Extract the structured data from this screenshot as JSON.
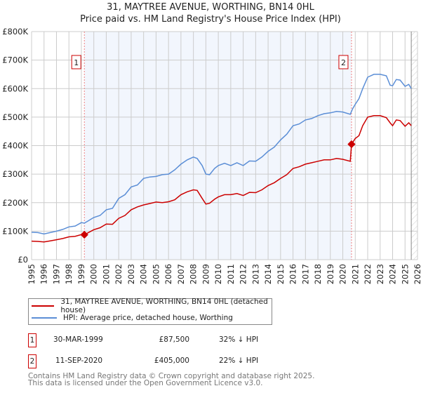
{
  "title_line1": "31, MAYTREE AVENUE, WORTHING, BN14 0HL",
  "title_line2": "Price paid vs. HM Land Registry's House Price Index (HPI)",
  "chart_data": {
    "type": "line",
    "title": "31, MAYTREE AVENUE, WORTHING, BN14 0HL — Price paid vs. HM Land Registry's House Price Index (HPI)",
    "xlim": [
      1995,
      2026
    ],
    "ylim": [
      0,
      800000
    ],
    "x_ticks": [
      "1995",
      "1996",
      "1997",
      "1998",
      "1999",
      "2000",
      "2001",
      "2002",
      "2003",
      "2004",
      "2005",
      "2006",
      "2007",
      "2008",
      "2009",
      "2010",
      "2011",
      "2012",
      "2013",
      "2014",
      "2015",
      "2016",
      "2017",
      "2018",
      "2019",
      "2020",
      "2021",
      "2022",
      "2023",
      "2024",
      "2025",
      "2026"
    ],
    "y_ticks": [
      {
        "v": 0,
        "label": "£0"
      },
      {
        "v": 100000,
        "label": "£100K"
      },
      {
        "v": 200000,
        "label": "£200K"
      },
      {
        "v": 300000,
        "label": "£300K"
      },
      {
        "v": 400000,
        "label": "£400K"
      },
      {
        "v": 500000,
        "label": "£500K"
      },
      {
        "v": 600000,
        "label": "£600K"
      },
      {
        "v": 700000,
        "label": "£700K"
      },
      {
        "v": 800000,
        "label": "£800K"
      }
    ],
    "grid": true,
    "shaded_range": [
      1999.24,
      2020.7
    ],
    "series": [
      {
        "name": "31, MAYTREE AVENUE, WORTHING, BN14 0HL (detached house)",
        "color": "#cc0000",
        "x": [
          1995,
          1995.5,
          1996,
          1996.5,
          1997,
          1997.5,
          1998,
          1998.5,
          1999,
          1999.24,
          2000,
          2000.5,
          2001,
          2001.5,
          2002,
          2002.5,
          2003,
          2003.5,
          2004,
          2004.5,
          2005,
          2005.5,
          2006,
          2006.5,
          2007,
          2007.5,
          2008,
          2008.3,
          2008.7,
          2009,
          2009.3,
          2009.7,
          2010,
          2010.5,
          2011,
          2011.5,
          2012,
          2012.5,
          2013,
          2013.5,
          2014,
          2014.5,
          2015,
          2015.5,
          2016,
          2016.5,
          2017,
          2017.5,
          2018,
          2018.5,
          2019,
          2019.5,
          2020,
          2020.6,
          2020.7,
          2021,
          2021.3,
          2021.6,
          2022,
          2022.5,
          2023,
          2023.5,
          2023.8,
          2024,
          2024.3,
          2024.6,
          2025,
          2025.3,
          2025.5
        ],
        "y": [
          65000,
          64000,
          62000,
          66000,
          70000,
          74000,
          80000,
          82000,
          88000,
          87500,
          105000,
          112000,
          125000,
          124000,
          145000,
          155000,
          175000,
          185000,
          192000,
          197000,
          202000,
          200000,
          203000,
          210000,
          228000,
          238000,
          245000,
          243000,
          215000,
          195000,
          198000,
          212000,
          220000,
          228000,
          228000,
          232000,
          225000,
          236000,
          235000,
          245000,
          260000,
          270000,
          285000,
          298000,
          320000,
          326000,
          335000,
          340000,
          345000,
          350000,
          350000,
          355000,
          352000,
          345000,
          405000,
          425000,
          435000,
          470000,
          500000,
          505000,
          505000,
          498000,
          480000,
          470000,
          490000,
          488000,
          468000,
          480000,
          470000
        ]
      },
      {
        "name": "HPI: Average price, detached house, Worthing",
        "color": "#5b8ed6",
        "x": [
          1995,
          1995.5,
          1996,
          1996.5,
          1997,
          1997.5,
          1998,
          1998.5,
          1999,
          1999.24,
          2000,
          2000.5,
          2001,
          2001.5,
          2002,
          2002.5,
          2003,
          2003.5,
          2004,
          2004.5,
          2005,
          2005.5,
          2006,
          2006.5,
          2007,
          2007.5,
          2008,
          2008.3,
          2008.7,
          2009,
          2009.3,
          2009.7,
          2010,
          2010.5,
          2011,
          2011.5,
          2012,
          2012.5,
          2013,
          2013.5,
          2014,
          2014.5,
          2015,
          2015.5,
          2016,
          2016.5,
          2017,
          2017.5,
          2018,
          2018.5,
          2019,
          2019.5,
          2020,
          2020.6,
          2020.8,
          2021,
          2021.3,
          2021.6,
          2022,
          2022.5,
          2023,
          2023.5,
          2023.8,
          2024,
          2024.3,
          2024.6,
          2025,
          2025.3,
          2025.5
        ],
        "y": [
          96000,
          95000,
          90000,
          95000,
          100000,
          106000,
          115000,
          118000,
          130000,
          128000,
          148000,
          155000,
          175000,
          180000,
          215000,
          228000,
          255000,
          262000,
          285000,
          290000,
          292000,
          298000,
          300000,
          315000,
          335000,
          350000,
          360000,
          355000,
          330000,
          300000,
          298000,
          320000,
          330000,
          338000,
          330000,
          340000,
          330000,
          346000,
          345000,
          360000,
          380000,
          395000,
          420000,
          440000,
          470000,
          476000,
          490000,
          495000,
          505000,
          512000,
          515000,
          520000,
          518000,
          510000,
          530000,
          545000,
          565000,
          600000,
          640000,
          650000,
          650000,
          645000,
          612000,
          610000,
          632000,
          630000,
          608000,
          615000,
          600000
        ]
      }
    ],
    "annotations": [
      {
        "label": "1",
        "x": 1999.24,
        "y": 87500
      },
      {
        "label": "2",
        "x": 2020.7,
        "y": 405000
      }
    ]
  },
  "legend": [
    {
      "label": "31, MAYTREE AVENUE, WORTHING, BN14 0HL (detached house)",
      "color": "#cc0000"
    },
    {
      "label": "HPI: Average price, detached house, Worthing",
      "color": "#5b8ed6"
    }
  ],
  "transactions": [
    {
      "num": "1",
      "date": "30-MAR-1999",
      "price": "£87,500",
      "hpi": "32% ↓ HPI"
    },
    {
      "num": "2",
      "date": "11-SEP-2020",
      "price": "£405,000",
      "hpi": "22% ↓ HPI"
    }
  ],
  "footer_line1": "Contains HM Land Registry data © Crown copyright and database right 2025.",
  "footer_line2": "This data is licensed under the Open Government Licence v3.0."
}
